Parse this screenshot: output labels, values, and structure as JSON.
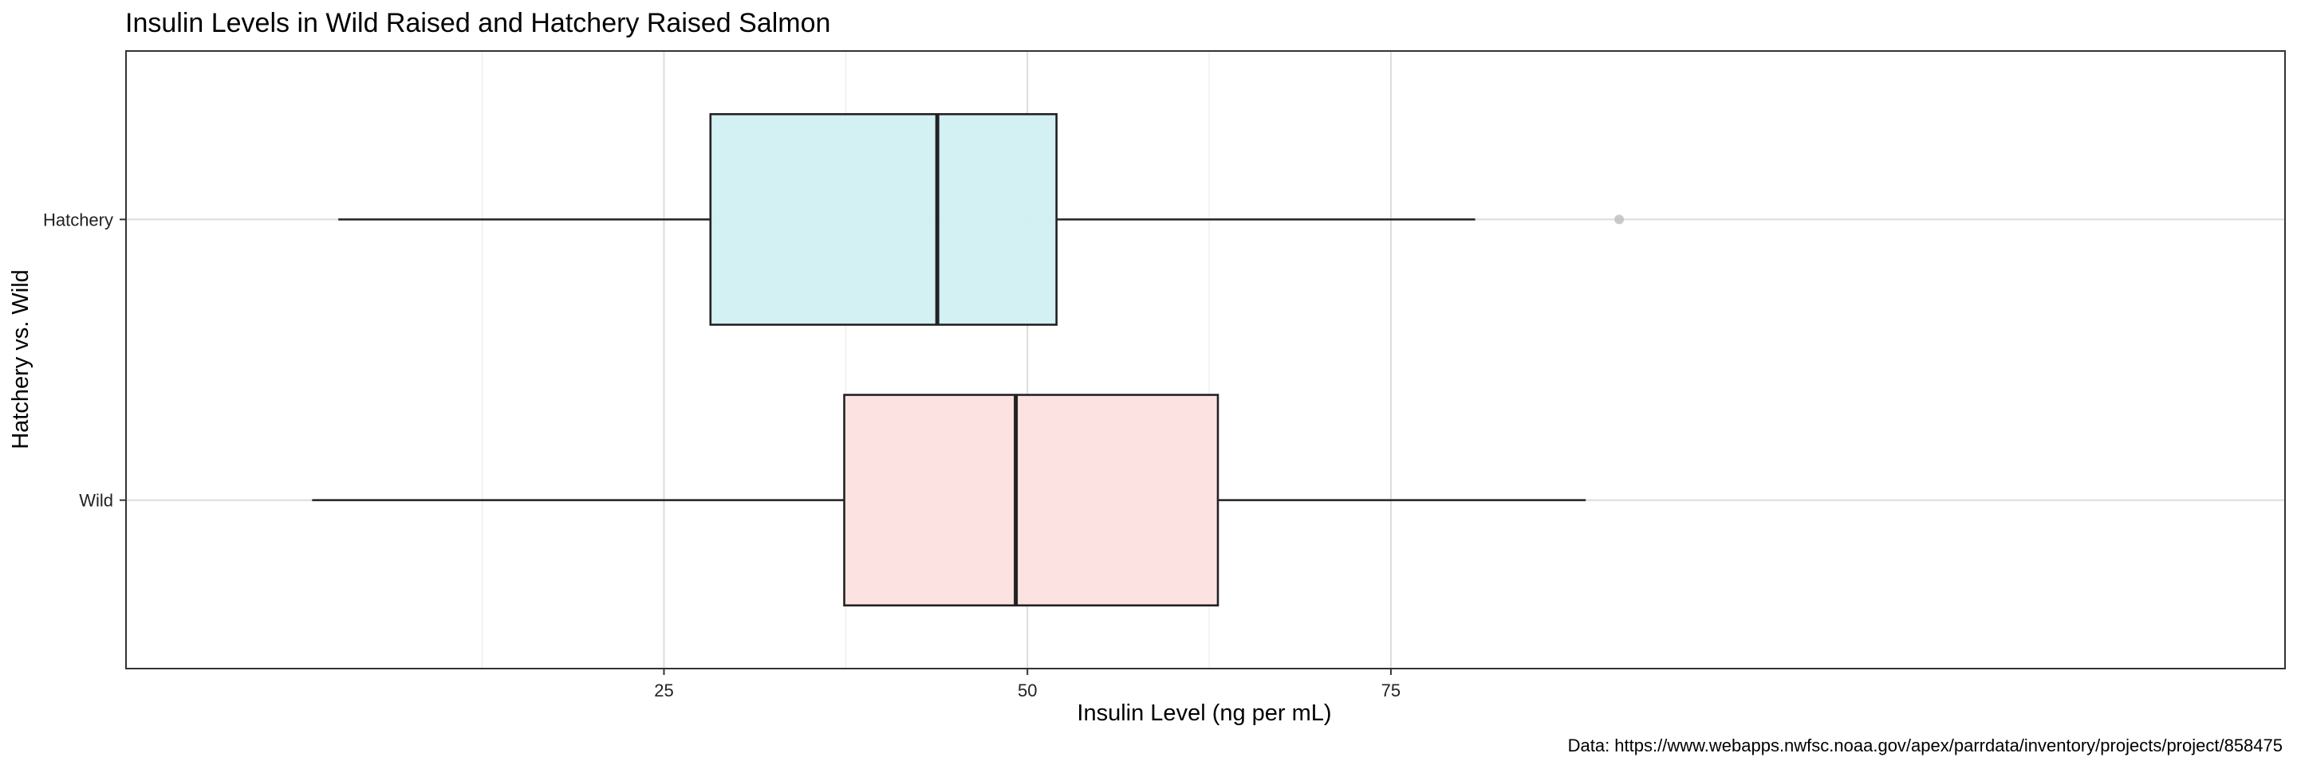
{
  "chart_data": {
    "type": "boxplot",
    "orientation": "horizontal",
    "title": "Insulin Levels in Wild Raised and Hatchery Raised Salmon",
    "xlabel": "Insulin Level (ng per mL)",
    "ylabel": "Hatchery vs. Wild",
    "caption": "Data: https://www.webapps.nwfsc.noaa.gov/apex/parrdata/inventory/projects/project/858475",
    "xlim": [
      -12,
      136.5
    ],
    "xticks": [
      25,
      50,
      75
    ],
    "xtick_labels": [
      "25",
      "50",
      "75"
    ],
    "x_minor_grid": [
      12.5,
      37.5,
      62.5
    ],
    "grid": true,
    "legend": "none",
    "groups": [
      {
        "label": "Hatchery",
        "fill": "#d1eff1",
        "whisker_low": 2.6,
        "q1": 28.2,
        "median": 43.8,
        "q3": 52.0,
        "whisker_high": 80.8,
        "outliers": [
          90.7
        ]
      },
      {
        "label": "Wild",
        "fill": "#fde0e0",
        "whisker_low": 0.8,
        "q1": 37.4,
        "median": 49.2,
        "q3": 63.1,
        "whisker_high": 88.4,
        "outliers": []
      }
    ]
  }
}
